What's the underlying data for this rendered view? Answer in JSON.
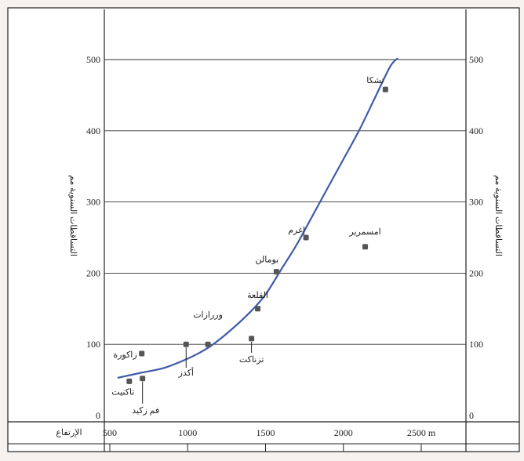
{
  "chart_data": {
    "type": "scatter",
    "title": "",
    "xlabel": "الإرتفاع",
    "x_unit": "m",
    "ylabel_left": "التساقطات السنوية مم",
    "ylabel_right": "التساقطات السنوية مم",
    "xlim": [
      500,
      2500
    ],
    "ylim": [
      0,
      500
    ],
    "x_ticks": [
      {
        "value": 500,
        "label": "500"
      },
      {
        "value": 1000,
        "label": "1000"
      },
      {
        "value": 1500,
        "label": "1500"
      },
      {
        "value": 2000,
        "label": "2000"
      },
      {
        "value": 2500,
        "label": "2500 m"
      }
    ],
    "y_ticks": [
      {
        "value": 0,
        "label": "0"
      },
      {
        "value": 100,
        "label": "100"
      },
      {
        "value": 200,
        "label": "200"
      },
      {
        "value": 300,
        "label": "300"
      },
      {
        "value": 400,
        "label": "400"
      },
      {
        "value": 500,
        "label": "500"
      }
    ],
    "grid_y": true,
    "points": [
      {
        "name": "تشكا",
        "x": 2270,
        "y": 458
      },
      {
        "name": "إغرم",
        "x": 1760,
        "y": 250
      },
      {
        "name": "امسمرير",
        "x": 2140,
        "y": 237
      },
      {
        "name": "بومالن",
        "x": 1570,
        "y": 202
      },
      {
        "name": "القلعة",
        "x": 1450,
        "y": 150
      },
      {
        "name": "وررازات",
        "x": 1130,
        "y": 100
      },
      {
        "name": "أكدز",
        "x": 990,
        "y": 100
      },
      {
        "name": "تزناكت",
        "x": 1410,
        "y": 108
      },
      {
        "name": "زاكورة",
        "x": 705,
        "y": 87
      },
      {
        "name": "تاكنيت",
        "x": 625,
        "y": 48
      },
      {
        "name": "فم زكيد",
        "x": 710,
        "y": 52
      }
    ],
    "trend_line": [
      {
        "x": 550,
        "y": 53
      },
      {
        "x": 700,
        "y": 60
      },
      {
        "x": 850,
        "y": 67
      },
      {
        "x": 1000,
        "y": 80
      },
      {
        "x": 1130,
        "y": 95
      },
      {
        "x": 1250,
        "y": 115
      },
      {
        "x": 1400,
        "y": 145
      },
      {
        "x": 1500,
        "y": 170
      },
      {
        "x": 1600,
        "y": 205
      },
      {
        "x": 1700,
        "y": 240
      },
      {
        "x": 1800,
        "y": 280
      },
      {
        "x": 1900,
        "y": 320
      },
      {
        "x": 2000,
        "y": 360
      },
      {
        "x": 2100,
        "y": 400
      },
      {
        "x": 2200,
        "y": 445
      },
      {
        "x": 2300,
        "y": 490
      },
      {
        "x": 2350,
        "y": 502
      }
    ],
    "colors": {
      "trend": "#3f5ba9",
      "point": "#555555",
      "axis": "#222222",
      "grid": "#333333"
    }
  }
}
